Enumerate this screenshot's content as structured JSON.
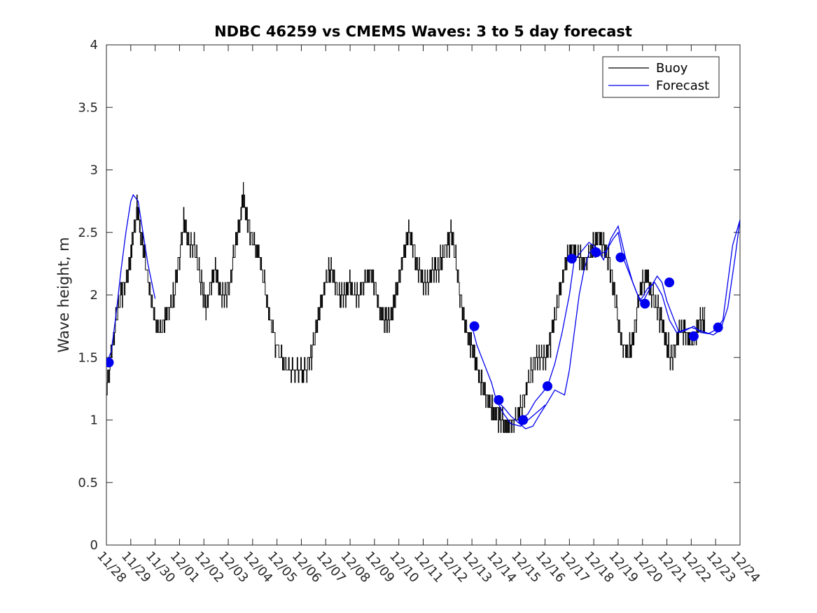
{
  "chart_data": {
    "type": "line",
    "title": "NDBC 46259 vs CMEMS Waves: 3 to 5 day forecast",
    "xlabel": "",
    "ylabel": "Wave height, m",
    "xlim": [
      0,
      26
    ],
    "ylim": [
      0,
      4
    ],
    "grid": false,
    "legend_position": "top-right",
    "x_tick_labels": [
      "11/28",
      "11/29",
      "11/30",
      "12/01",
      "12/02",
      "12/03",
      "12/04",
      "12/05",
      "12/06",
      "12/07",
      "12/08",
      "12/09",
      "12/10",
      "12/11",
      "12/12",
      "12/13",
      "12/14",
      "12/15",
      "12/16",
      "12/17",
      "12/18",
      "12/19",
      "12/20",
      "12/21",
      "12/22",
      "12/23",
      "12/24"
    ],
    "y_ticks": [
      0,
      0.5,
      1,
      1.5,
      2,
      2.5,
      3,
      3.5,
      4
    ],
    "y_tick_labels": [
      "0",
      "0.5",
      "1",
      "1.5",
      "2",
      "2.5",
      "3",
      "3.5",
      "4"
    ],
    "series": [
      {
        "name": "Buoy",
        "color": "#000000",
        "points": [
          [
            0,
            1.2
          ],
          [
            0.2,
            1.5
          ],
          [
            0.4,
            1.8
          ],
          [
            0.6,
            2.0
          ],
          [
            0.8,
            2.1
          ],
          [
            1.0,
            2.3
          ],
          [
            1.1,
            2.5
          ],
          [
            1.3,
            2.7
          ],
          [
            1.4,
            2.5
          ],
          [
            1.6,
            2.3
          ],
          [
            1.8,
            2.0
          ],
          [
            2.0,
            1.8
          ],
          [
            2.2,
            1.7
          ],
          [
            2.4,
            1.8
          ],
          [
            2.6,
            1.9
          ],
          [
            2.8,
            2.0
          ],
          [
            3.0,
            2.3
          ],
          [
            3.2,
            2.6
          ],
          [
            3.4,
            2.4
          ],
          [
            3.6,
            2.4
          ],
          [
            3.8,
            2.2
          ],
          [
            4.0,
            2.0
          ],
          [
            4.1,
            1.9
          ],
          [
            4.3,
            2.1
          ],
          [
            4.5,
            2.2
          ],
          [
            4.7,
            2.0
          ],
          [
            4.9,
            2.0
          ],
          [
            5.1,
            2.1
          ],
          [
            5.3,
            2.4
          ],
          [
            5.5,
            2.6
          ],
          [
            5.6,
            2.8
          ],
          [
            5.7,
            2.7
          ],
          [
            5.9,
            2.5
          ],
          [
            6.1,
            2.4
          ],
          [
            6.3,
            2.3
          ],
          [
            6.5,
            2.1
          ],
          [
            6.7,
            1.8
          ],
          [
            7.0,
            1.6
          ],
          [
            7.3,
            1.45
          ],
          [
            7.6,
            1.4
          ],
          [
            7.9,
            1.38
          ],
          [
            8.2,
            1.4
          ],
          [
            8.4,
            1.5
          ],
          [
            8.6,
            1.7
          ],
          [
            8.8,
            1.9
          ],
          [
            9.0,
            2.1
          ],
          [
            9.2,
            2.2
          ],
          [
            9.4,
            2.1
          ],
          [
            9.6,
            2.0
          ],
          [
            9.8,
            2.0
          ],
          [
            10.0,
            2.1
          ],
          [
            10.2,
            2.0
          ],
          [
            10.4,
            2.0
          ],
          [
            10.6,
            2.1
          ],
          [
            10.8,
            2.2
          ],
          [
            11.0,
            2.1
          ],
          [
            11.2,
            1.9
          ],
          [
            11.4,
            1.8
          ],
          [
            11.6,
            1.8
          ],
          [
            11.8,
            1.9
          ],
          [
            12.0,
            2.1
          ],
          [
            12.2,
            2.3
          ],
          [
            12.4,
            2.5
          ],
          [
            12.6,
            2.4
          ],
          [
            12.8,
            2.2
          ],
          [
            13.0,
            2.1
          ],
          [
            13.2,
            2.1
          ],
          [
            13.4,
            2.2
          ],
          [
            13.6,
            2.2
          ],
          [
            13.8,
            2.3
          ],
          [
            14.0,
            2.4
          ],
          [
            14.2,
            2.5
          ],
          [
            14.4,
            2.2
          ],
          [
            14.6,
            1.9
          ],
          [
            14.8,
            1.7
          ],
          [
            15.0,
            1.6
          ],
          [
            15.2,
            1.45
          ],
          [
            15.4,
            1.3
          ],
          [
            15.6,
            1.2
          ],
          [
            15.8,
            1.1
          ],
          [
            16.0,
            1.05
          ],
          [
            16.2,
            1.0
          ],
          [
            16.4,
            0.95
          ],
          [
            16.6,
            0.95
          ],
          [
            16.8,
            1.0
          ],
          [
            17.0,
            1.1
          ],
          [
            17.2,
            1.2
          ],
          [
            17.4,
            1.35
          ],
          [
            17.6,
            1.5
          ],
          [
            17.8,
            1.5
          ],
          [
            18.0,
            1.5
          ],
          [
            18.2,
            1.6
          ],
          [
            18.4,
            1.8
          ],
          [
            18.6,
            2.0
          ],
          [
            18.8,
            2.2
          ],
          [
            19.0,
            2.35
          ],
          [
            19.2,
            2.35
          ],
          [
            19.4,
            2.3
          ],
          [
            19.6,
            2.25
          ],
          [
            19.8,
            2.3
          ],
          [
            20.0,
            2.4
          ],
          [
            20.2,
            2.45
          ],
          [
            20.4,
            2.4
          ],
          [
            20.6,
            2.3
          ],
          [
            20.8,
            2.1
          ],
          [
            21.0,
            1.8
          ],
          [
            21.2,
            1.6
          ],
          [
            21.4,
            1.55
          ],
          [
            21.6,
            1.6
          ],
          [
            21.8,
            1.9
          ],
          [
            22.0,
            2.1
          ],
          [
            22.2,
            2.15
          ],
          [
            22.4,
            2.0
          ],
          [
            22.6,
            1.9
          ],
          [
            22.8,
            1.8
          ],
          [
            23.0,
            1.6
          ],
          [
            23.2,
            1.5
          ],
          [
            23.4,
            1.6
          ],
          [
            23.6,
            1.75
          ],
          [
            23.8,
            1.7
          ],
          [
            24.0,
            1.6
          ],
          [
            24.2,
            1.7
          ],
          [
            24.4,
            1.8
          ],
          [
            24.6,
            1.8
          ]
        ]
      },
      {
        "name": "Forecast",
        "color": "#0000ee",
        "segments": [
          [
            [
              0,
              1.45
            ],
            [
              0.2,
              1.55
            ],
            [
              0.4,
              1.85
            ],
            [
              0.6,
              2.2
            ],
            [
              0.8,
              2.5
            ],
            [
              1.0,
              2.75
            ],
            [
              1.1,
              2.8
            ],
            [
              1.3,
              2.75
            ],
            [
              1.5,
              2.5
            ],
            [
              1.7,
              2.25
            ],
            [
              2.0,
              1.97
            ]
          ],
          [
            [
              15.0,
              1.75
            ],
            [
              15.2,
              1.6
            ],
            [
              15.5,
              1.45
            ],
            [
              15.8,
              1.3
            ],
            [
              16.0,
              1.16
            ],
            [
              16.3,
              1.05
            ],
            [
              16.6,
              0.97
            ],
            [
              17.0,
              0.95
            ],
            [
              17.3,
              1.0
            ],
            [
              17.6,
              1.05
            ],
            [
              17.9,
              1.1
            ],
            [
              18.0,
              1.12
            ]
          ],
          [
            [
              16.0,
              1.16
            ],
            [
              16.3,
              1.1
            ],
            [
              16.6,
              1.03
            ],
            [
              16.9,
              0.98
            ],
            [
              17.2,
              0.93
            ],
            [
              17.5,
              0.95
            ],
            [
              17.8,
              1.05
            ],
            [
              18.1,
              1.14
            ],
            [
              18.4,
              1.24
            ],
            [
              18.8,
              1.2
            ],
            [
              19.0,
              1.4
            ],
            [
              19.2,
              1.7
            ],
            [
              19.4,
              2.0
            ],
            [
              19.6,
              2.2
            ],
            [
              19.8,
              2.33
            ],
            [
              20.0,
              2.38
            ],
            [
              20.2,
              2.32
            ],
            [
              20.5,
              2.35
            ],
            [
              20.8,
              2.45
            ],
            [
              21.0,
              2.5
            ],
            [
              21.2,
              2.3
            ],
            [
              21.4,
              2.2
            ],
            [
              21.6,
              2.1
            ],
            [
              21.8,
              2.0
            ],
            [
              22.0,
              1.94
            ],
            [
              22.3,
              2.05
            ],
            [
              22.6,
              2.15
            ],
            [
              22.8,
              2.1
            ],
            [
              23.0,
              1.95
            ],
            [
              23.3,
              1.8
            ],
            [
              23.5,
              1.7
            ],
            [
              23.8,
              1.72
            ],
            [
              24.1,
              1.75
            ],
            [
              24.4,
              1.7
            ],
            [
              24.7,
              1.69
            ],
            [
              25.0,
              1.72
            ],
            [
              25.3,
              1.8
            ],
            [
              25.5,
              2.1
            ],
            [
              25.7,
              2.4
            ],
            [
              26.0,
              2.6
            ]
          ],
          [
            [
              17.0,
              1.0
            ],
            [
              17.3,
              1.05
            ],
            [
              17.6,
              1.15
            ],
            [
              17.9,
              1.22
            ],
            [
              18.1,
              1.27
            ],
            [
              18.4,
              1.45
            ],
            [
              18.7,
              1.7
            ],
            [
              19.0,
              2.0
            ],
            [
              19.2,
              2.28
            ],
            [
              19.5,
              2.35
            ],
            [
              19.8,
              2.42
            ],
            [
              20.1,
              2.38
            ],
            [
              20.4,
              2.28
            ],
            [
              20.7,
              2.45
            ],
            [
              21.0,
              2.55
            ],
            [
              21.3,
              2.3
            ],
            [
              21.6,
              2.1
            ],
            [
              21.9,
              1.95
            ],
            [
              22.2,
              2.05
            ],
            [
              22.5,
              2.1
            ],
            [
              22.8,
              2.0
            ],
            [
              23.1,
              1.8
            ],
            [
              23.4,
              1.7
            ],
            [
              23.7,
              1.72
            ],
            [
              24.0,
              1.74
            ],
            [
              24.3,
              1.72
            ],
            [
              24.6,
              1.7
            ],
            [
              24.9,
              1.68
            ],
            [
              25.2,
              1.72
            ],
            [
              25.5,
              1.9
            ],
            [
              25.8,
              2.3
            ],
            [
              26.0,
              2.6
            ]
          ]
        ],
        "markers": [
          [
            0.1,
            1.46
          ],
          [
            15.1,
            1.75
          ],
          [
            16.1,
            1.16
          ],
          [
            17.1,
            1.0
          ],
          [
            18.1,
            1.27
          ],
          [
            19.1,
            2.29
          ],
          [
            20.1,
            2.34
          ],
          [
            21.1,
            2.3
          ],
          [
            22.1,
            1.93
          ],
          [
            23.1,
            2.1
          ],
          [
            24.1,
            1.67
          ],
          [
            25.1,
            1.74
          ]
        ]
      }
    ]
  }
}
